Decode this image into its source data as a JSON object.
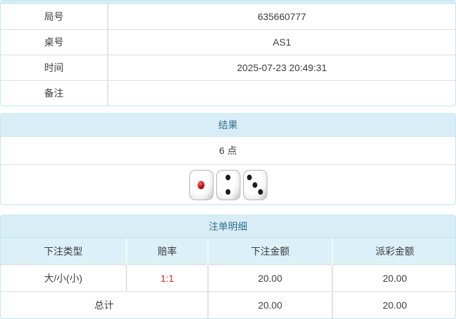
{
  "colors": {
    "panel_border": "#bce8f1",
    "heading_bg": "#d9edf7",
    "heading_text": "#31708f",
    "cell_border": "#dddddd",
    "body_text": "#3d3d3d",
    "odds_red": "#e62222"
  },
  "game_info": {
    "rows": [
      {
        "label": "局号",
        "value": "635660777"
      },
      {
        "label": "桌号",
        "value": "AS1"
      },
      {
        "label": "时间",
        "value": "2025-07-23 20:49:31"
      },
      {
        "label": "备注",
        "value": ""
      }
    ]
  },
  "result": {
    "heading": "结果",
    "points": "6 点",
    "dice": [
      1,
      2,
      3
    ]
  },
  "bet_details": {
    "heading": "注单明细",
    "columns": [
      "下注类型",
      "赔率",
      "下注金额",
      "派彩金额"
    ],
    "rows": [
      {
        "type": "大/小(小)",
        "odds": "1:1",
        "bet_amount": "20.00",
        "payout_amount": "20.00"
      }
    ],
    "total": {
      "label": "总计",
      "bet_amount": "20.00",
      "payout_amount": "20.00"
    }
  }
}
